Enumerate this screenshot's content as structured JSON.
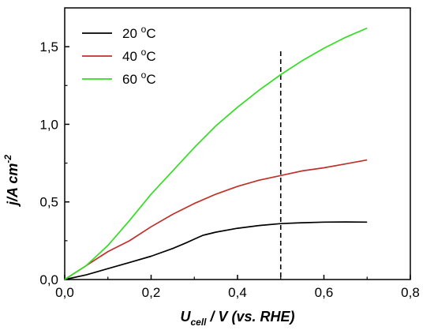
{
  "chart_data": {
    "type": "line",
    "xlabel": {
      "main": "U",
      "sub": "cell",
      "rest": " / V (vs. RHE)"
    },
    "ylabel": {
      "main": "j/A cm",
      "sup": "-2"
    },
    "xlim": [
      0,
      0.8
    ],
    "ylim": [
      0,
      1.75
    ],
    "x_ticks": [
      0.0,
      0.2,
      0.4,
      0.6,
      0.8
    ],
    "x_tick_labels": [
      "0,0",
      "0,2",
      "0,4",
      "0,6",
      "0,8"
    ],
    "y_ticks": [
      0.0,
      0.5,
      1.0,
      1.5
    ],
    "y_tick_labels": [
      "0,0",
      "0,5",
      "1,0",
      "1,5"
    ],
    "grid": false,
    "legend_position": "top-left",
    "vline": {
      "x": 0.5,
      "style": "dashed",
      "color": "#000000"
    },
    "series": [
      {
        "name": "20 °C",
        "label_num": "20",
        "label_unit": "C",
        "color": "#000000",
        "points": [
          [
            0,
            0
          ],
          [
            0.05,
            0.03
          ],
          [
            0.1,
            0.07
          ],
          [
            0.15,
            0.11
          ],
          [
            0.2,
            0.15
          ],
          [
            0.25,
            0.2
          ],
          [
            0.28,
            0.235
          ],
          [
            0.3,
            0.26
          ],
          [
            0.32,
            0.285
          ],
          [
            0.35,
            0.305
          ],
          [
            0.4,
            0.33
          ],
          [
            0.45,
            0.348
          ],
          [
            0.5,
            0.36
          ],
          [
            0.55,
            0.366
          ],
          [
            0.6,
            0.37
          ],
          [
            0.65,
            0.371
          ],
          [
            0.7,
            0.37
          ]
        ]
      },
      {
        "name": "40 °C",
        "label_num": "40",
        "label_unit": "C",
        "color": "#c0302a",
        "points": [
          [
            0,
            0
          ],
          [
            0.05,
            0.09
          ],
          [
            0.1,
            0.18
          ],
          [
            0.15,
            0.25
          ],
          [
            0.2,
            0.34
          ],
          [
            0.25,
            0.42
          ],
          [
            0.3,
            0.49
          ],
          [
            0.35,
            0.55
          ],
          [
            0.4,
            0.6
          ],
          [
            0.45,
            0.64
          ],
          [
            0.5,
            0.67
          ],
          [
            0.55,
            0.7
          ],
          [
            0.6,
            0.72
          ],
          [
            0.65,
            0.745
          ],
          [
            0.7,
            0.77
          ]
        ]
      },
      {
        "name": "60 °C",
        "label_num": "60",
        "label_unit": "C",
        "color": "#33dd22",
        "points": [
          [
            0,
            0
          ],
          [
            0.05,
            0.09
          ],
          [
            0.1,
            0.22
          ],
          [
            0.15,
            0.38
          ],
          [
            0.2,
            0.55
          ],
          [
            0.25,
            0.7
          ],
          [
            0.3,
            0.85
          ],
          [
            0.35,
            0.99
          ],
          [
            0.4,
            1.11
          ],
          [
            0.45,
            1.22
          ],
          [
            0.5,
            1.32
          ],
          [
            0.55,
            1.41
          ],
          [
            0.6,
            1.49
          ],
          [
            0.65,
            1.56
          ],
          [
            0.7,
            1.62
          ]
        ]
      }
    ]
  }
}
